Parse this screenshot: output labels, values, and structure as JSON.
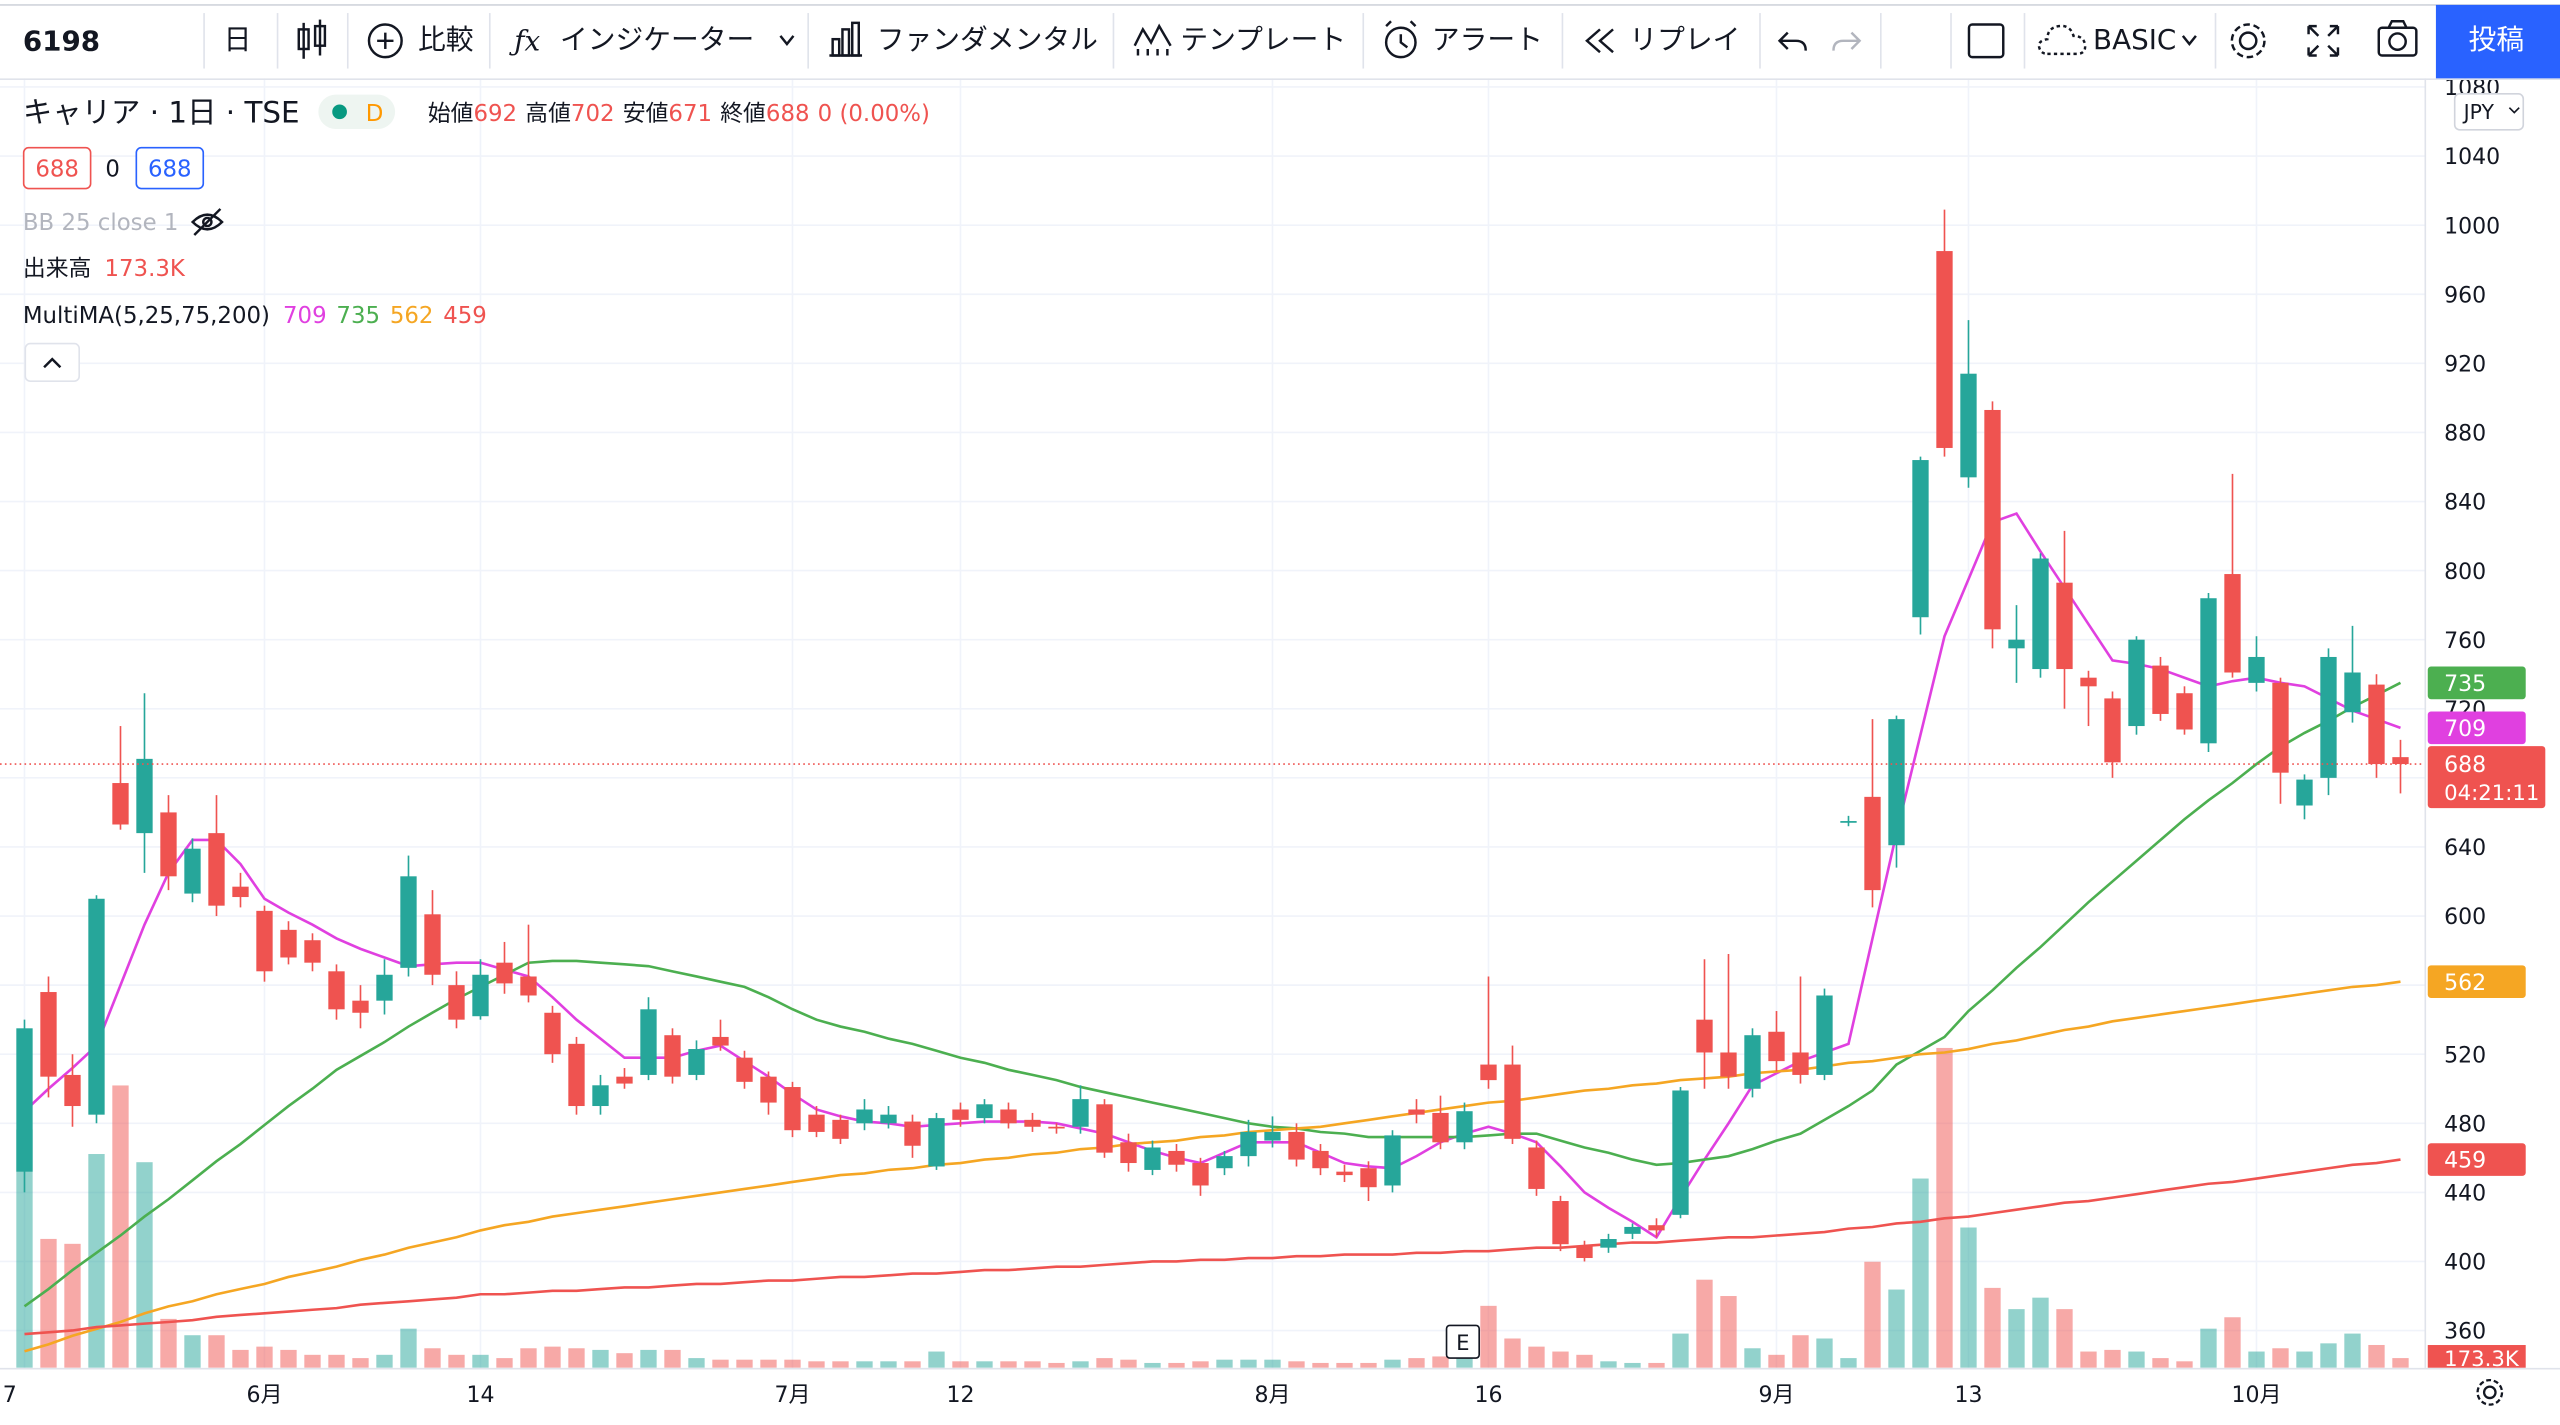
{
  "toolbar": {
    "symbol": "6198",
    "interval": "日",
    "compare": "比較",
    "indicators": "インジケーター",
    "fundamentals": "ファンダメンタル",
    "templates": "テンプレート",
    "alerts": "アラート",
    "replay": "リプレイ",
    "layout": "BASIC",
    "publish": "投稿"
  },
  "legend": {
    "symbol_title": "キャリア · 1日 · TSE",
    "badge": "D",
    "open_label": "始値",
    "high_label": "高値",
    "low_label": "安値",
    "close_label": "終値",
    "change": "0 (0.00%)",
    "bid": 688,
    "spread": 0,
    "ask": 688,
    "bb": "BB 25 close 1",
    "volume_label": "出来高",
    "volume_last_label": "173.3K",
    "ma_label": "MultiMA(5,25,75,200)",
    "timer": "04:21:11",
    "currency": "JPY",
    "event": "E"
  },
  "chart_data": {
    "type": "candlestick",
    "categories": [
      "7",
      null,
      null,
      null,
      null,
      null,
      null,
      null,
      null,
      null,
      "6月",
      null,
      null,
      null,
      null,
      null,
      null,
      null,
      null,
      "14",
      null,
      null,
      null,
      null,
      null,
      null,
      null,
      null,
      null,
      null,
      null,
      null,
      "7月",
      null,
      null,
      null,
      null,
      null,
      null,
      "12",
      null,
      null,
      null,
      null,
      null,
      null,
      null,
      null,
      null,
      null,
      null,
      null,
      "8月",
      null,
      null,
      null,
      null,
      null,
      null,
      null,
      null,
      "16",
      null,
      null,
      null,
      null,
      null,
      null,
      null,
      null,
      null,
      null,
      null,
      "9月",
      null,
      null,
      null,
      null,
      null,
      null,
      null,
      "13",
      null,
      null,
      null,
      null,
      null,
      null,
      null,
      null,
      null,
      null,
      null,
      "10月",
      null,
      null,
      null,
      null,
      null,
      null
    ],
    "candles": [
      [
        452,
        540,
        440,
        535
      ],
      [
        556,
        565,
        495,
        507
      ],
      [
        508,
        520,
        478,
        490
      ],
      [
        485,
        612,
        480,
        610
      ],
      [
        677,
        710,
        650,
        653
      ],
      [
        648,
        729,
        625,
        691
      ],
      [
        660,
        670,
        615,
        623
      ],
      [
        613,
        645,
        608,
        639
      ],
      [
        648,
        670,
        600,
        606
      ],
      [
        617,
        625,
        605,
        611
      ],
      [
        603,
        606,
        562,
        568
      ],
      [
        592,
        597,
        572,
        576
      ],
      [
        586,
        590,
        568,
        573
      ],
      [
        568,
        572,
        540,
        546
      ],
      [
        551,
        560,
        535,
        544
      ],
      [
        551,
        575,
        543,
        566
      ],
      [
        570,
        635,
        565,
        623
      ],
      [
        601,
        615,
        560,
        566
      ],
      [
        560,
        568,
        535,
        540
      ],
      [
        542,
        575,
        540,
        566
      ],
      [
        573,
        585,
        555,
        561
      ],
      [
        565,
        595,
        550,
        554
      ],
      [
        544,
        548,
        515,
        520
      ],
      [
        526,
        530,
        485,
        490
      ],
      [
        490,
        508,
        485,
        502
      ],
      [
        507,
        512,
        500,
        503
      ],
      [
        508,
        553,
        505,
        546
      ],
      [
        531,
        535,
        503,
        507
      ],
      [
        508,
        528,
        505,
        523
      ],
      [
        530,
        540,
        522,
        525
      ],
      [
        518,
        522,
        500,
        504
      ],
      [
        507,
        510,
        485,
        492
      ],
      [
        501,
        504,
        472,
        476
      ],
      [
        485,
        490,
        472,
        475
      ],
      [
        482,
        485,
        468,
        471
      ],
      [
        480,
        494,
        476,
        488
      ],
      [
        480,
        490,
        477,
        485
      ],
      [
        481,
        485,
        460,
        467
      ],
      [
        455,
        486,
        453,
        483
      ],
      [
        488,
        492,
        478,
        482
      ],
      [
        483,
        494,
        480,
        491
      ],
      [
        488,
        492,
        477,
        480
      ],
      [
        482,
        486,
        475,
        478
      ],
      [
        478,
        480,
        474,
        477
      ],
      [
        478,
        502,
        474,
        494
      ],
      [
        491,
        494,
        460,
        463
      ],
      [
        469,
        474,
        452,
        457
      ],
      [
        453,
        470,
        450,
        466
      ],
      [
        464,
        468,
        452,
        456
      ],
      [
        457,
        460,
        438,
        444
      ],
      [
        454,
        464,
        450,
        461
      ],
      [
        461,
        482,
        455,
        475
      ],
      [
        470,
        484,
        466,
        475
      ],
      [
        475,
        480,
        455,
        459
      ],
      [
        464,
        468,
        450,
        454
      ],
      [
        452,
        456,
        446,
        450
      ],
      [
        454,
        458,
        435,
        443
      ],
      [
        444,
        476,
        440,
        473
      ],
      [
        488,
        494,
        480,
        485
      ],
      [
        486,
        496,
        465,
        469
      ],
      [
        469,
        492,
        465,
        487
      ],
      [
        514,
        565,
        500,
        505
      ],
      [
        514,
        525,
        468,
        471
      ],
      [
        466,
        470,
        438,
        442
      ],
      [
        435,
        438,
        406,
        410
      ],
      [
        409,
        412,
        400,
        402
      ],
      [
        408,
        416,
        405,
        413
      ],
      [
        416,
        422,
        413,
        420
      ],
      [
        421,
        425,
        414,
        418
      ],
      [
        427,
        501,
        425,
        499
      ],
      [
        540,
        575,
        500,
        521
      ],
      [
        521,
        578,
        500,
        507
      ],
      [
        500,
        535,
        495,
        531
      ],
      [
        533,
        545,
        510,
        516
      ],
      [
        521,
        565,
        503,
        508
      ],
      [
        508,
        558,
        505,
        554
      ],
      [
        654,
        658,
        652,
        655
      ],
      [
        669,
        714,
        605,
        615
      ],
      [
        641,
        716,
        628,
        714
      ],
      [
        773,
        866,
        763,
        864
      ],
      [
        985,
        1009,
        866,
        871
      ],
      [
        854,
        945,
        848,
        914
      ],
      [
        893,
        898,
        755,
        766
      ],
      [
        755,
        780,
        735,
        760
      ],
      [
        743,
        810,
        738,
        807
      ],
      [
        793,
        823,
        720,
        743
      ],
      [
        738,
        742,
        710,
        733
      ],
      [
        726,
        730,
        680,
        689
      ],
      [
        710,
        762,
        705,
        760
      ],
      [
        745,
        750,
        713,
        717
      ],
      [
        729,
        733,
        705,
        708
      ],
      [
        700,
        787,
        695,
        784
      ],
      [
        798,
        856,
        738,
        741
      ],
      [
        735,
        762,
        730,
        750
      ],
      [
        735,
        738,
        665,
        683
      ],
      [
        664,
        682,
        656,
        679
      ],
      [
        680,
        755,
        670,
        750
      ],
      [
        718,
        768,
        712,
        741
      ],
      [
        734,
        740,
        680,
        688
      ],
      [
        692,
        702,
        671,
        688
      ]
    ],
    "volume": [
      4219,
      2283,
      2196,
      3786,
      5000,
      3641,
      867,
      578,
      578,
      318,
      376,
      318,
      231,
      231,
      173,
      231,
      694,
      347,
      231,
      231,
      173,
      347,
      376,
      347,
      318,
      260,
      318,
      318,
      173,
      145,
      145,
      145,
      145,
      116,
      116,
      116,
      116,
      116,
      289,
      116,
      116,
      116,
      116,
      87,
      116,
      173,
      145,
      87,
      87,
      116,
      145,
      145,
      145,
      116,
      87,
      87,
      87,
      145,
      173,
      202,
      347,
      1098,
      520,
      376,
      289,
      231,
      116,
      87,
      87,
      607,
      1561,
      1272,
      347,
      231,
      578,
      520,
      173,
      1879,
      1387,
      3352,
      5664,
      2485,
      1416,
      1040,
      1243,
      1040,
      289,
      318,
      289,
      173,
      116,
      694,
      896,
      289,
      347,
      289,
      434,
      607,
      405,
      173.3
    ],
    "volume_ylim": [
      0,
      22830
    ],
    "up_color": "#26a69a",
    "down_color": "#ef5350",
    "series": [
      {
        "color": "#e040e0",
        "values": [
          487,
          500,
          512,
          525,
          560,
          595,
          625,
          644,
          644,
          630,
          610,
          602,
          595,
          587,
          581,
          576,
          571,
          572,
          573,
          573,
          569,
          565,
          553,
          540,
          529,
          518,
          518,
          518,
          522,
          525,
          516,
          507,
          497,
          488,
          484,
          481,
          480,
          478,
          479,
          480,
          481,
          481,
          481,
          480,
          477,
          474,
          469,
          464,
          460,
          457,
          463,
          469,
          469,
          469,
          463,
          457,
          455,
          454,
          461,
          469,
          474,
          478,
          474,
          469,
          455,
          440,
          431,
          423,
          414,
          437,
          459,
          480,
          502,
          509,
          516,
          521,
          526,
          587,
          648,
          705,
          762,
          795,
          828,
          833,
          811,
          790,
          769,
          748,
          746,
          743,
          738,
          733,
          736,
          738,
          735,
          733,
          726,
          719,
          714,
          709
        ]
      },
      {
        "color": "#4caf50",
        "values": [
          374,
          384,
          395,
          405,
          415,
          426,
          436,
          447,
          458,
          468,
          479,
          490,
          500,
          511,
          519,
          527,
          536,
          544,
          552,
          559,
          566,
          573,
          574,
          574,
          573,
          572,
          571,
          568,
          565,
          562,
          559,
          553,
          546,
          540,
          536,
          533,
          529,
          526,
          522,
          518,
          515,
          511,
          508,
          505,
          501,
          498,
          495,
          492,
          489,
          486,
          483,
          480,
          478,
          477,
          475,
          474,
          472,
          472,
          472,
          472,
          472,
          473,
          474,
          474,
          470,
          466,
          463,
          459,
          456,
          457,
          459,
          461,
          465,
          470,
          474,
          482,
          490,
          499,
          514,
          522,
          530,
          545,
          557,
          570,
          582,
          595,
          608,
          620,
          632,
          644,
          656,
          667,
          677,
          688,
          698,
          706,
          713,
          721,
          728,
          735
        ]
      },
      {
        "color": "#f5a623",
        "values": [
          348,
          352,
          357,
          361,
          365,
          370,
          374,
          377,
          381,
          384,
          387,
          391,
          394,
          397,
          401,
          404,
          408,
          411,
          414,
          418,
          421,
          423,
          426,
          428,
          430,
          432,
          434,
          436,
          438,
          440,
          442,
          444,
          446,
          448,
          450,
          451,
          453,
          454,
          456,
          457,
          459,
          460,
          462,
          463,
          465,
          466,
          468,
          469,
          470,
          472,
          473,
          475,
          476,
          477,
          478,
          480,
          482,
          484,
          486,
          488,
          490,
          492,
          493,
          495,
          497,
          499,
          500,
          502,
          503,
          505,
          506,
          507,
          509,
          510,
          511,
          513,
          515,
          516,
          518,
          520,
          521,
          523,
          526,
          528,
          531,
          534,
          536,
          539,
          541,
          543,
          545,
          547,
          549,
          551,
          553,
          555,
          557,
          559,
          560,
          562
        ]
      },
      {
        "color": "#ef5350",
        "values": [
          358,
          359,
          360,
          362,
          363,
          364,
          365,
          366,
          368,
          369,
          370,
          371,
          372,
          373,
          375,
          376,
          377,
          378,
          379,
          381,
          381,
          382,
          383,
          383,
          384,
          385,
          385,
          386,
          387,
          387,
          388,
          389,
          389,
          390,
          391,
          391,
          392,
          393,
          393,
          394,
          395,
          395,
          396,
          397,
          397,
          398,
          399,
          400,
          400,
          401,
          401,
          402,
          402,
          403,
          403,
          404,
          404,
          404,
          405,
          405,
          406,
          406,
          407,
          408,
          408,
          409,
          410,
          411,
          411,
          412,
          413,
          414,
          414,
          415,
          416,
          417,
          419,
          420,
          422,
          423,
          425,
          426,
          428,
          430,
          432,
          434,
          435,
          437,
          439,
          441,
          443,
          445,
          446,
          448,
          450,
          452,
          454,
          456,
          457,
          459
        ]
      }
    ],
    "ylim": [
      338.4,
      1085
    ],
    "yticks": [
      360,
      400,
      440,
      480,
      520,
      560,
      600,
      640,
      680,
      720,
      760,
      800,
      840,
      880,
      920,
      960,
      1000,
      1040,
      1080
    ],
    "grid": true
  }
}
